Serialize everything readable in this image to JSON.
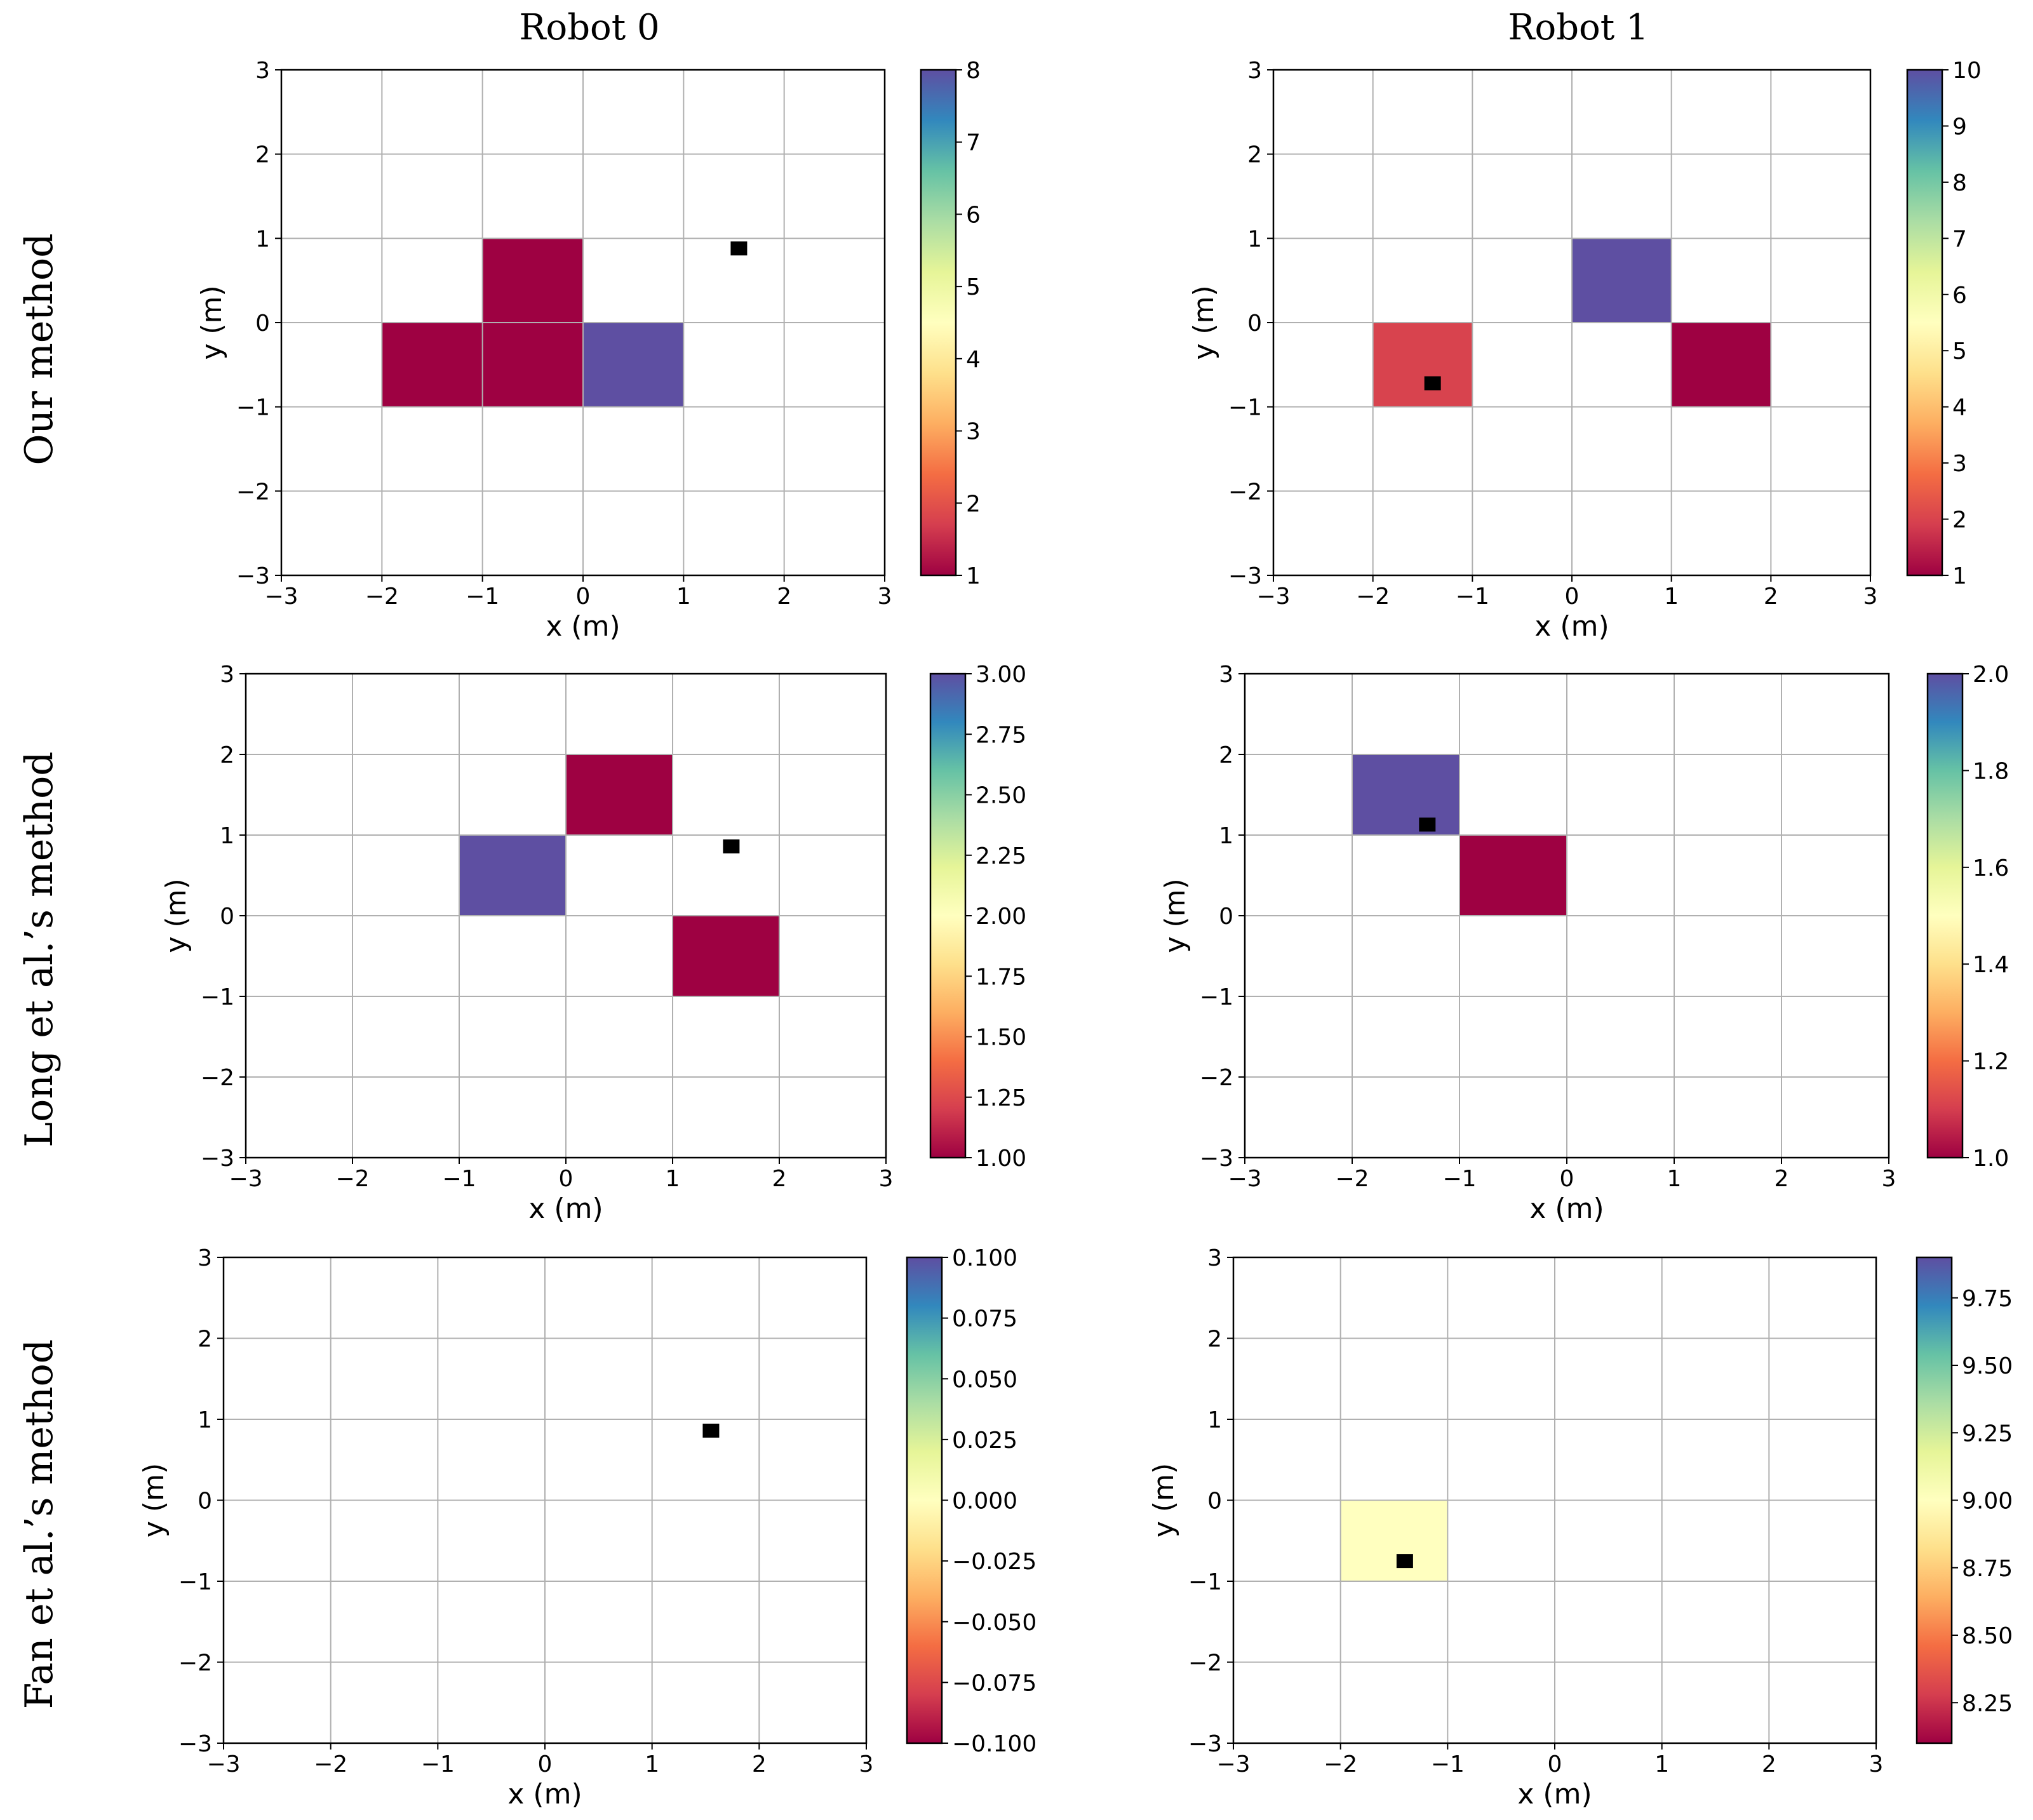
{
  "column_titles": [
    "Robot 0",
    "Robot 1"
  ],
  "row_titles": [
    "Our method",
    "Long et al.’s method",
    "Fan et al.’s method"
  ],
  "colors": {
    "grid": "#b0b0b0",
    "robot_marker": "#000000",
    "colormap": "Spectral",
    "spectral_stops": [
      "#9e0142",
      "#d53e4f",
      "#f46d43",
      "#fdae61",
      "#fee08b",
      "#ffffbf",
      "#e6f598",
      "#abdda4",
      "#66c2a5",
      "#3288bd",
      "#5e4fa2"
    ]
  },
  "chart_data": [
    {
      "type": "heatmap",
      "row": "Our method",
      "column": "Robot 0",
      "xlabel": "x (m)",
      "ylabel": "y (m)",
      "xlim": [
        -3,
        3
      ],
      "ylim": [
        -3,
        3
      ],
      "xticks": [
        -3,
        -2,
        -1,
        0,
        1,
        2,
        3
      ],
      "xtick_labels": [
        "−3",
        "−2",
        "−1",
        "0",
        "1",
        "2",
        "3"
      ],
      "yticks": [
        -3,
        -2,
        -1,
        0,
        1,
        2,
        3
      ],
      "ytick_labels": [
        "−3",
        "−2",
        "−1",
        "0",
        "1",
        "2",
        "3"
      ],
      "grid": true,
      "cells": [
        {
          "x": -2,
          "y": -1,
          "value": 1
        },
        {
          "x": -1,
          "y": -1,
          "value": 1
        },
        {
          "x": -1,
          "y": 0,
          "value": 1
        },
        {
          "x": 0,
          "y": -1,
          "value": 8
        }
      ],
      "robot": {
        "x": 1.55,
        "y": 0.88
      },
      "colorbar": {
        "min": 1,
        "max": 8,
        "ticks": [
          1,
          2,
          3,
          4,
          5,
          6,
          7,
          8
        ],
        "tick_labels": [
          "1",
          "2",
          "3",
          "4",
          "5",
          "6",
          "7",
          "8"
        ]
      }
    },
    {
      "type": "heatmap",
      "row": "Our method",
      "column": "Robot 1",
      "xlabel": "x (m)",
      "ylabel": "y (m)",
      "xlim": [
        -3,
        3
      ],
      "ylim": [
        -3,
        3
      ],
      "xticks": [
        -3,
        -2,
        -1,
        0,
        1,
        2,
        3
      ],
      "xtick_labels": [
        "−3",
        "−2",
        "−1",
        "0",
        "1",
        "2",
        "3"
      ],
      "yticks": [
        -3,
        -2,
        -1,
        0,
        1,
        2,
        3
      ],
      "ytick_labels": [
        "−3",
        "−2",
        "−1",
        "0",
        "1",
        "2",
        "3"
      ],
      "grid": true,
      "cells": [
        {
          "x": -2,
          "y": -1,
          "value": 2
        },
        {
          "x": 0,
          "y": 0,
          "value": 10
        },
        {
          "x": 1,
          "y": -1,
          "value": 1
        }
      ],
      "robot": {
        "x": -1.4,
        "y": -0.72
      },
      "colorbar": {
        "min": 1,
        "max": 10,
        "ticks": [
          1,
          2,
          3,
          4,
          5,
          6,
          7,
          8,
          9,
          10
        ],
        "tick_labels": [
          "1",
          "2",
          "3",
          "4",
          "5",
          "6",
          "7",
          "8",
          "9",
          "10"
        ]
      }
    },
    {
      "type": "heatmap",
      "row": "Long et al.’s method",
      "column": "Robot 0",
      "xlabel": "x (m)",
      "ylabel": "y (m)",
      "xlim": [
        -3,
        3
      ],
      "ylim": [
        -3,
        3
      ],
      "xticks": [
        -3,
        -2,
        -1,
        0,
        1,
        2,
        3
      ],
      "xtick_labels": [
        "−3",
        "−2",
        "−1",
        "0",
        "1",
        "2",
        "3"
      ],
      "yticks": [
        -3,
        -2,
        -1,
        0,
        1,
        2,
        3
      ],
      "ytick_labels": [
        "−3",
        "−2",
        "−1",
        "0",
        "1",
        "2",
        "3"
      ],
      "grid": true,
      "cells": [
        {
          "x": 0,
          "y": 1,
          "value": 1
        },
        {
          "x": -1,
          "y": 0,
          "value": 3
        },
        {
          "x": 1,
          "y": -1,
          "value": 1
        }
      ],
      "robot": {
        "x": 1.55,
        "y": 0.86
      },
      "colorbar": {
        "min": 1,
        "max": 3,
        "ticks": [
          1,
          1.25,
          1.5,
          1.75,
          2,
          2.25,
          2.5,
          2.75,
          3
        ],
        "tick_labels": [
          "1.00",
          "1.25",
          "1.50",
          "1.75",
          "2.00",
          "2.25",
          "2.50",
          "2.75",
          "3.00"
        ]
      }
    },
    {
      "type": "heatmap",
      "row": "Long et al.’s method",
      "column": "Robot 1",
      "xlabel": "x (m)",
      "ylabel": "y (m)",
      "xlim": [
        -3,
        3
      ],
      "ylim": [
        -3,
        3
      ],
      "xticks": [
        -3,
        -2,
        -1,
        0,
        1,
        2,
        3
      ],
      "xtick_labels": [
        "−3",
        "−2",
        "−1",
        "0",
        "1",
        "2",
        "3"
      ],
      "yticks": [
        -3,
        -2,
        -1,
        0,
        1,
        2,
        3
      ],
      "ytick_labels": [
        "−3",
        "−2",
        "−1",
        "0",
        "1",
        "2",
        "3"
      ],
      "grid": true,
      "cells": [
        {
          "x": -2,
          "y": 1,
          "value": 2
        },
        {
          "x": -1,
          "y": 0,
          "value": 1
        }
      ],
      "robot": {
        "x": -1.3,
        "y": 1.13
      },
      "colorbar": {
        "min": 1,
        "max": 2,
        "ticks": [
          1,
          1.2,
          1.4,
          1.6,
          1.8,
          2
        ],
        "tick_labels": [
          "1.0",
          "1.2",
          "1.4",
          "1.6",
          "1.8",
          "2.0"
        ]
      }
    },
    {
      "type": "heatmap",
      "row": "Fan et al.’s method",
      "column": "Robot 0",
      "xlabel": "x (m)",
      "ylabel": "y (m)",
      "xlim": [
        -3,
        3
      ],
      "ylim": [
        -3,
        3
      ],
      "xticks": [
        -3,
        -2,
        -1,
        0,
        1,
        2,
        3
      ],
      "xtick_labels": [
        "−3",
        "−2",
        "−1",
        "0",
        "1",
        "2",
        "3"
      ],
      "yticks": [
        -3,
        -2,
        -1,
        0,
        1,
        2,
        3
      ],
      "ytick_labels": [
        "−3",
        "−2",
        "−1",
        "0",
        "1",
        "2",
        "3"
      ],
      "grid": true,
      "cells": [],
      "robot": {
        "x": 1.55,
        "y": 0.86
      },
      "colorbar": {
        "min": -0.1,
        "max": 0.1,
        "ticks": [
          -0.1,
          -0.075,
          -0.05,
          -0.025,
          0,
          0.025,
          0.05,
          0.075,
          0.1
        ],
        "tick_labels": [
          "−0.100",
          "−0.075",
          "−0.050",
          "−0.025",
          "0.000",
          "0.025",
          "0.050",
          "0.075",
          "0.100"
        ]
      }
    },
    {
      "type": "heatmap",
      "row": "Fan et al.’s method",
      "column": "Robot 1",
      "xlabel": "x (m)",
      "ylabel": "y (m)",
      "xlim": [
        -3,
        3
      ],
      "ylim": [
        -3,
        3
      ],
      "xticks": [
        -3,
        -2,
        -1,
        0,
        1,
        2,
        3
      ],
      "xtick_labels": [
        "−3",
        "−2",
        "−1",
        "0",
        "1",
        "2",
        "3"
      ],
      "yticks": [
        -3,
        -2,
        -1,
        0,
        1,
        2,
        3
      ],
      "ytick_labels": [
        "−3",
        "−2",
        "−1",
        "0",
        "1",
        "2",
        "3"
      ],
      "grid": true,
      "cells": [
        {
          "x": -2,
          "y": -1,
          "value": 9.0
        }
      ],
      "robot": {
        "x": -1.4,
        "y": -0.75
      },
      "colorbar": {
        "min": 8.1,
        "max": 9.9,
        "ticks": [
          8.25,
          8.5,
          8.75,
          9,
          9.25,
          9.5,
          9.75
        ],
        "tick_labels": [
          "8.25",
          "8.50",
          "8.75",
          "9.00",
          "9.25",
          "9.50",
          "9.75"
        ]
      }
    }
  ]
}
